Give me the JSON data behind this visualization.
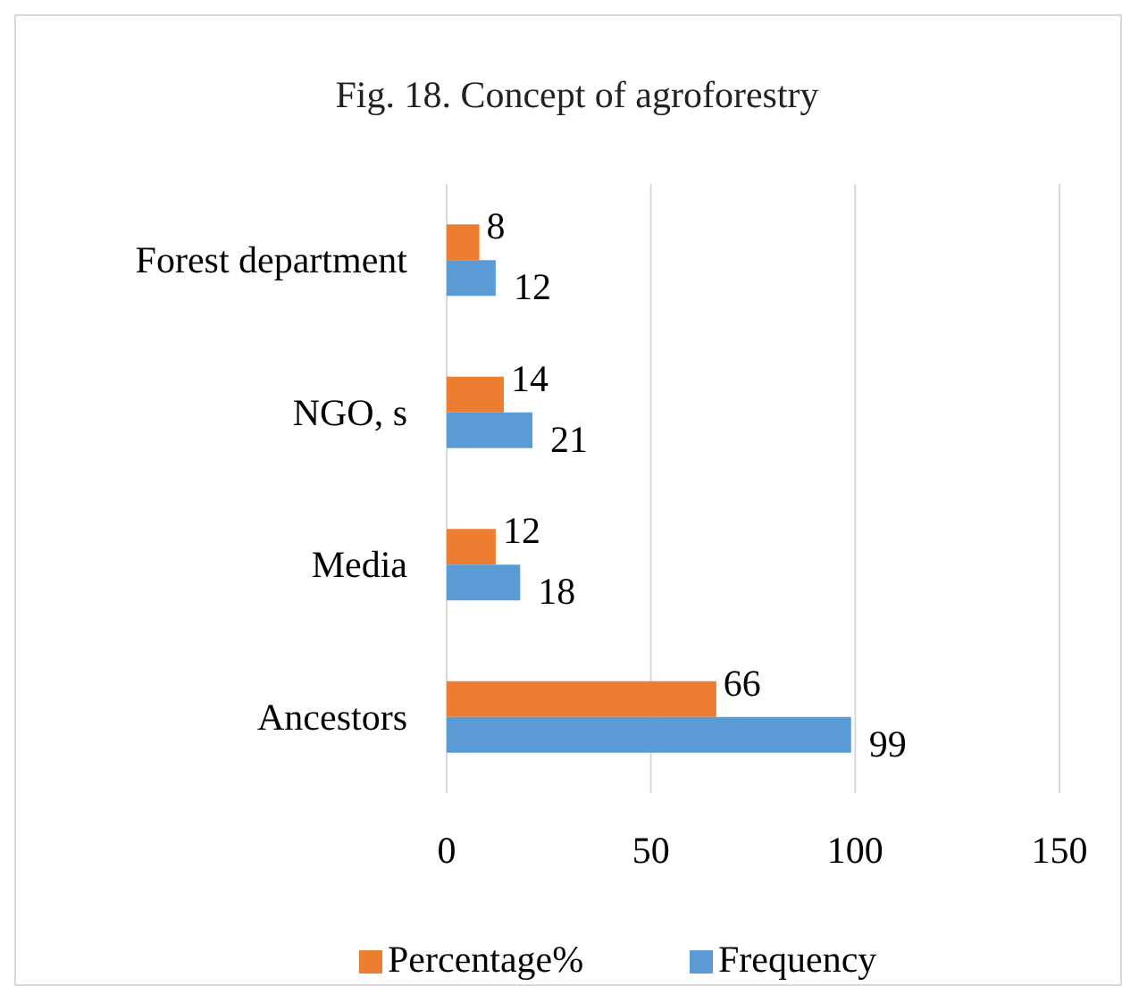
{
  "chart_data": {
    "type": "bar",
    "orientation": "horizontal",
    "title": "Fig. 18. Concept of agroforestry",
    "categories": [
      "Forest department",
      "NGO, s",
      "Media",
      "Ancestors"
    ],
    "series": [
      {
        "name": "Percentage%",
        "color": "#ed7d31",
        "values": [
          8,
          14,
          12,
          66
        ]
      },
      {
        "name": "Frequency",
        "color": "#5b9bd5",
        "values": [
          12,
          21,
          18,
          99
        ]
      }
    ],
    "xlim": [
      0,
      150
    ],
    "xticks": [
      0,
      50,
      100,
      150
    ],
    "grid": "x",
    "legend": "bottom",
    "data_labels": true
  }
}
